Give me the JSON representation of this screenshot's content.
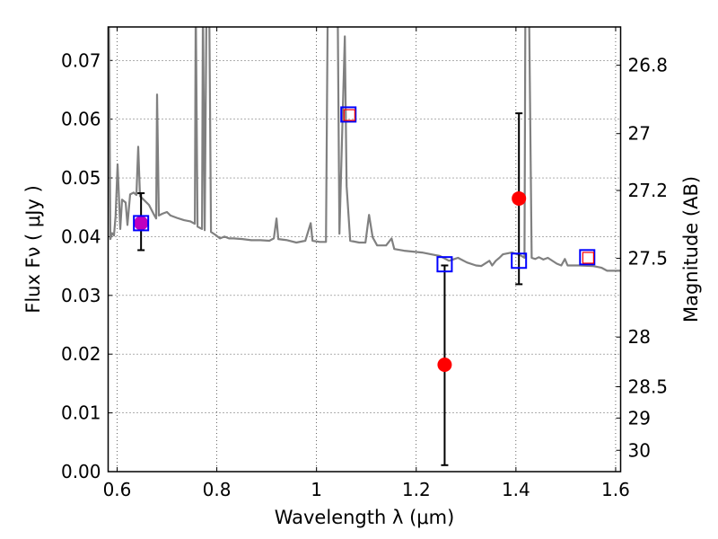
{
  "chart_data": {
    "type": "line",
    "title": "",
    "xlabel": "Wavelength  λ (μm)",
    "ylabel": "Flux  Fν  ( μJy )",
    "ylabel_right": "Magnitude (AB)",
    "xlim": [
      0.582,
      1.61
    ],
    "ylim": [
      0.0,
      0.0757
    ],
    "grid": true,
    "ab_zero_point": 23.9,
    "x_ticks": [
      "0.6",
      "0.8",
      "1",
      "1.2",
      "1.4",
      "1.6"
    ],
    "x_tick_values": [
      0.6,
      0.8,
      1.0,
      1.2,
      1.4,
      1.6
    ],
    "y_ticks": [
      "0.00",
      "0.01",
      "0.02",
      "0.03",
      "0.04",
      "0.05",
      "0.06",
      "0.07"
    ],
    "y_tick_values": [
      0,
      0.01,
      0.02,
      0.03,
      0.04,
      0.05,
      0.06,
      0.07
    ],
    "right_ticks": [
      "26.8",
      "27",
      "27.2",
      "27.5",
      "28",
      "28.5",
      "29",
      "30"
    ],
    "right_tick_values": [
      26.8,
      27.0,
      27.2,
      27.5,
      28.0,
      28.5,
      29.0,
      30.0
    ],
    "colors": {
      "spectrum": "#808080",
      "observed": "#ff0000",
      "model_box": "#0000ff",
      "model_inner": "#ff0000",
      "first_point": "#bf00bf",
      "errorbar": "#000000"
    },
    "series": [
      {
        "name": "model spectrum",
        "kind": "line",
        "x": [
          0.5832,
          0.5865,
          0.59,
          0.5937,
          0.597,
          0.6009,
          0.6063,
          0.6099,
          0.6171,
          0.6207,
          0.6261,
          0.6333,
          0.6387,
          0.6423,
          0.6459,
          0.6532,
          0.664,
          0.673,
          0.6784,
          0.6802,
          0.6838,
          0.691,
          0.7,
          0.7072,
          0.7198,
          0.7342,
          0.7468,
          0.7559,
          0.7577,
          0.7613,
          0.7703,
          0.7721,
          0.7757,
          0.7793,
          0.7847,
          0.7883,
          0.7919,
          0.7973,
          0.8063,
          0.8153,
          0.8243,
          0.8333,
          0.8514,
          0.8694,
          0.8874,
          0.9054,
          0.9144,
          0.9198,
          0.9234,
          0.9414,
          0.9595,
          0.9775,
          0.9883,
          0.9919,
          1.0063,
          1.0189,
          1.0225,
          1.0423,
          1.0459,
          1.0568,
          1.0604,
          1.0676,
          1.0856,
          1.0982,
          1.1054,
          1.1126,
          1.1216,
          1.1396,
          1.1505,
          1.1559,
          1.1757,
          1.2117,
          1.2297,
          1.2477,
          1.2658,
          1.2838,
          1.3018,
          1.3198,
          1.3306,
          1.3468,
          1.3523,
          1.3595,
          1.3667,
          1.3739,
          1.3919,
          1.4099,
          1.4171,
          1.4189,
          1.4261,
          1.4315,
          1.4387,
          1.4459,
          1.455,
          1.464,
          1.482,
          1.491,
          1.4982,
          1.5036,
          1.527,
          1.5541,
          1.5721,
          1.5829,
          1.61
        ],
        "y": [
          0.08,
          0.0396,
          0.0406,
          0.0402,
          0.0435,
          0.0523,
          0.0413,
          0.0463,
          0.0458,
          0.042,
          0.0472,
          0.0475,
          0.0471,
          0.0553,
          0.0469,
          0.0463,
          0.0454,
          0.0439,
          0.0431,
          0.0642,
          0.0436,
          0.0439,
          0.0442,
          0.0436,
          0.0432,
          0.0428,
          0.0426,
          0.0422,
          0.08,
          0.0417,
          0.0413,
          0.08,
          0.0411,
          0.08,
          0.08,
          0.0408,
          0.0406,
          0.0403,
          0.0397,
          0.04,
          0.0397,
          0.0397,
          0.0396,
          0.0394,
          0.0394,
          0.0393,
          0.0397,
          0.0431,
          0.0396,
          0.0394,
          0.039,
          0.0393,
          0.0423,
          0.0393,
          0.0391,
          0.0391,
          0.08,
          0.08,
          0.0405,
          0.0741,
          0.0486,
          0.0393,
          0.039,
          0.039,
          0.0437,
          0.0399,
          0.0385,
          0.0385,
          0.0397,
          0.0379,
          0.0376,
          0.0373,
          0.037,
          0.0367,
          0.0359,
          0.0364,
          0.0356,
          0.0351,
          0.035,
          0.0359,
          0.0351,
          0.0359,
          0.0364,
          0.037,
          0.0373,
          0.0368,
          0.0364,
          0.08,
          0.08,
          0.0364,
          0.0362,
          0.0365,
          0.0361,
          0.0364,
          0.0354,
          0.0351,
          0.0362,
          0.0351,
          0.0351,
          0.035,
          0.0347,
          0.0342,
          0.0342
        ]
      },
      {
        "name": "observed photometry",
        "kind": "errorbar",
        "x": [
          0.648,
          1.257,
          1.406
        ],
        "y": [
          0.0423,
          0.0182,
          0.0465
        ],
        "y_low": [
          0.0377,
          0.0011,
          0.0319
        ],
        "y_high": [
          0.0474,
          0.0351,
          0.061
        ]
      },
      {
        "name": "model photometry",
        "kind": "square",
        "x": [
          0.648,
          1.064,
          1.257,
          1.406,
          1.543
        ],
        "y": [
          0.0423,
          0.0608,
          0.0353,
          0.0359,
          0.0365
        ]
      },
      {
        "name": "model photometry (inner)",
        "kind": "small-square",
        "x": [
          1.066,
          1.545
        ],
        "y": [
          0.0607,
          0.0364
        ]
      }
    ]
  }
}
